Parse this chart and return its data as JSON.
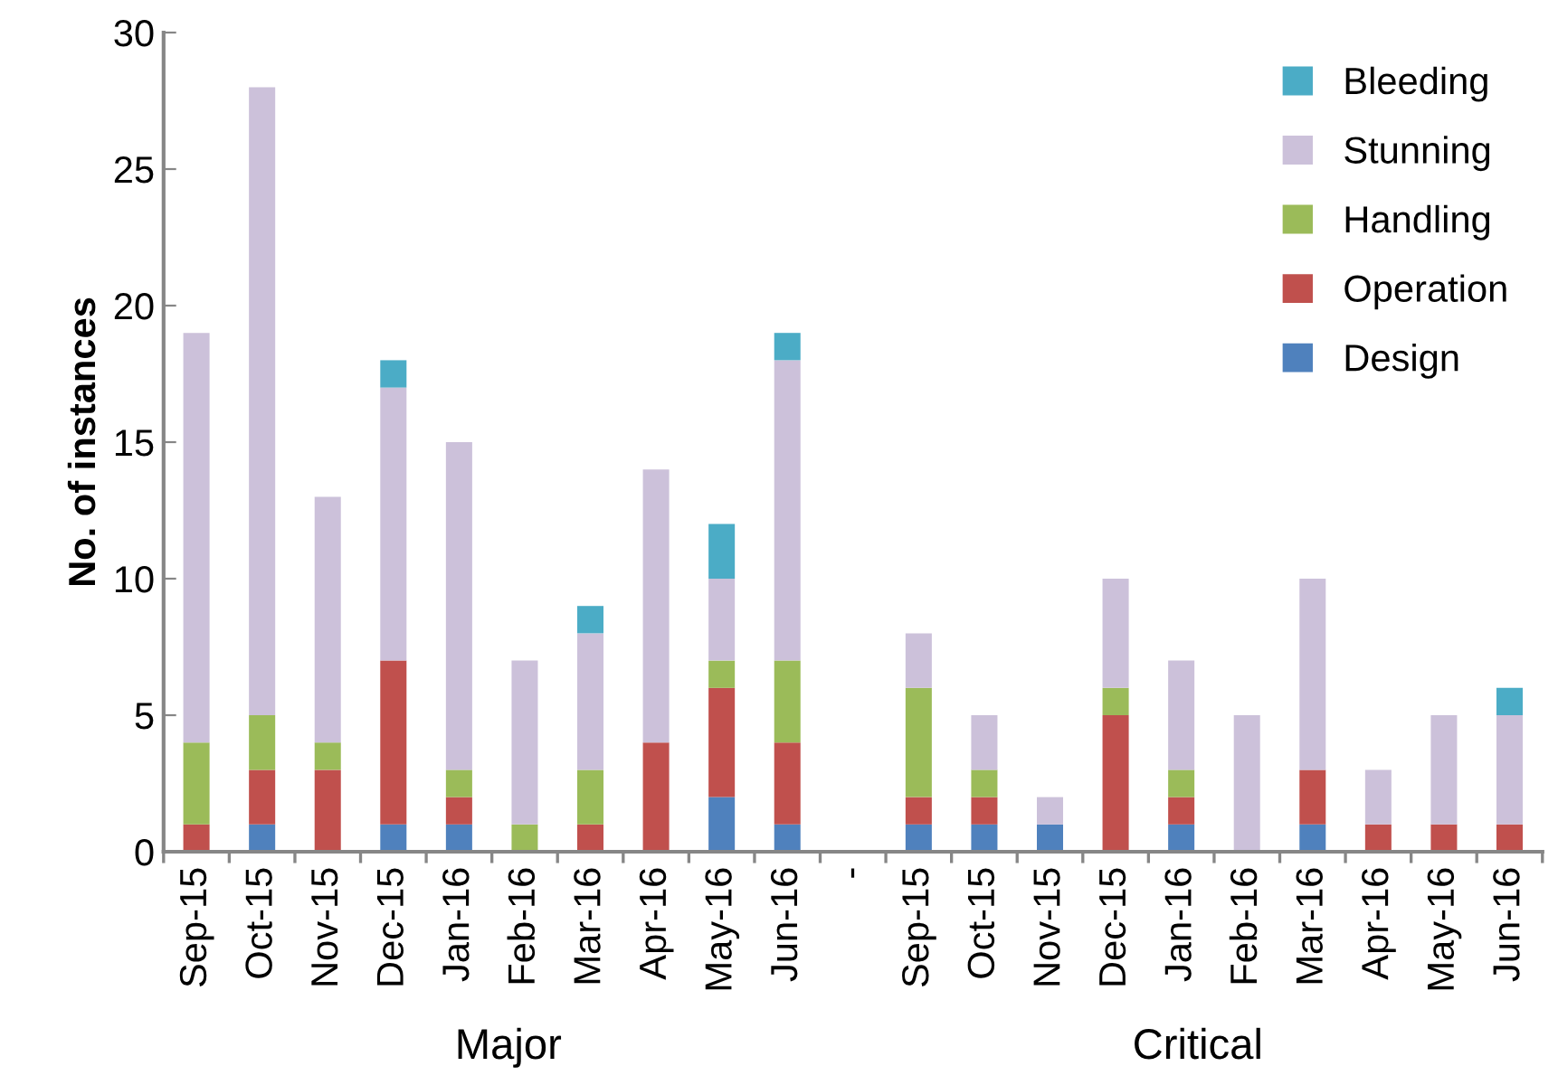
{
  "chart_data": {
    "type": "bar",
    "stacked": true,
    "ylabel": "No. of instances",
    "categories": [
      "Sep-15",
      "Oct-15",
      "Nov-15",
      "Dec-15",
      "Jan-16",
      "Feb-16",
      "Mar-16",
      "Apr-16",
      "May-16",
      "Jun-16",
      "-",
      "Sep-15",
      "Oct-15",
      "Nov-15",
      "Dec-15",
      "Jan-16",
      "Feb-16",
      "Mar-16",
      "Apr-16",
      "May-16",
      "Jun-16"
    ],
    "series": [
      {
        "name": "Design",
        "color": "#4f81bd",
        "values": [
          0,
          1,
          0,
          1,
          1,
          0,
          0,
          0,
          2,
          1,
          0,
          1,
          1,
          1,
          0,
          1,
          0,
          1,
          0,
          0,
          0
        ]
      },
      {
        "name": "Operation",
        "color": "#c0504d",
        "values": [
          1,
          2,
          3,
          6,
          1,
          0,
          1,
          4,
          4,
          3,
          0,
          1,
          1,
          0,
          5,
          1,
          0,
          2,
          1,
          1,
          1
        ]
      },
      {
        "name": "Handling",
        "color": "#9bbb59",
        "values": [
          3,
          2,
          1,
          0,
          1,
          1,
          2,
          0,
          1,
          3,
          0,
          4,
          1,
          0,
          1,
          1,
          0,
          0,
          0,
          0,
          0
        ]
      },
      {
        "name": "Stunning",
        "color": "#ccc1da",
        "values": [
          15,
          23,
          9,
          10,
          12,
          6,
          5,
          10,
          3,
          11,
          0,
          2,
          2,
          1,
          4,
          4,
          5,
          7,
          2,
          4,
          4
        ]
      },
      {
        "name": "Bleeding",
        "color": "#4bacc6",
        "values": [
          0,
          0,
          0,
          1,
          0,
          0,
          1,
          0,
          2,
          1,
          0,
          0,
          0,
          0,
          0,
          0,
          0,
          0,
          0,
          0,
          1
        ]
      }
    ],
    "ylim": [
      0,
      30
    ],
    "yticks": [
      0,
      5,
      10,
      15,
      20,
      25,
      30
    ],
    "grid": false,
    "legend": "top right",
    "annotations": [
      "Major",
      "Critical"
    ]
  }
}
